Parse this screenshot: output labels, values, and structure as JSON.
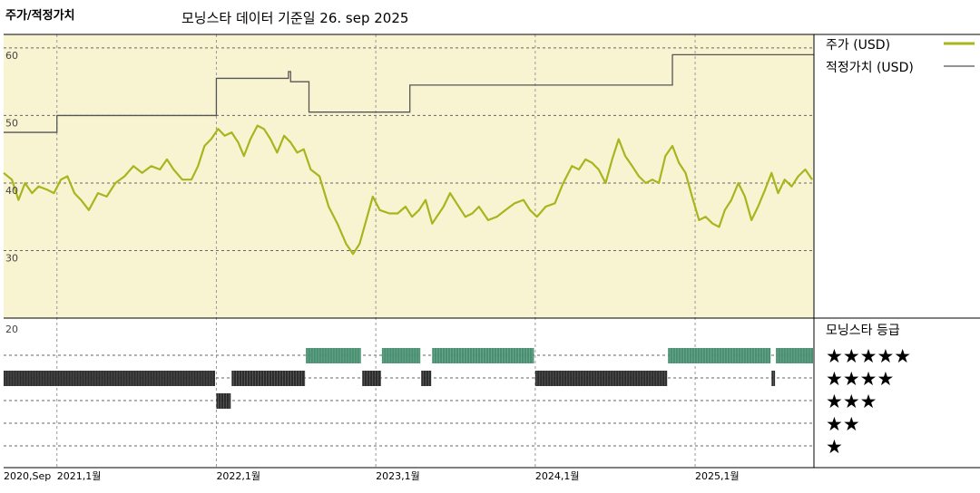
{
  "header": {
    "left_title": "주가/적정가치",
    "subtitle": "모닝스타 데이터 기준일 26. sep 2025"
  },
  "chart_data": {
    "type": "line",
    "colors": {
      "price": "#aab41e",
      "fair_value": "#555555",
      "rating_5": "#3f8a6a",
      "rating_4": "#222222",
      "rating_3": "#222222",
      "panel_bg": "#f8f4d2"
    },
    "y_ticks": [
      "60",
      "50",
      "40",
      "30"
    ],
    "ylim": [
      20,
      62
    ],
    "rating_axis_label": "20",
    "x_ticks": [
      "2020,Sep",
      "2021,1월",
      "2022,1월",
      "2023,1월",
      "2024,1월",
      "2025,1월"
    ],
    "x_tick_dates": [
      "2020-09-01",
      "2021-01-01",
      "2022-01-01",
      "2023-01-01",
      "2024-01-01",
      "2025-01-01"
    ],
    "x_range": [
      "2020-09-01",
      "2025-09-30"
    ],
    "legend": {
      "price_label": "주가 (USD)",
      "fair_label": "적정가치 (USD)",
      "rating_title": "모닝스타 등급",
      "ratings": [
        "★★★★★",
        "★★★★",
        "★★★",
        "★★",
        "★"
      ]
    },
    "series": [
      {
        "name": "주가 (USD)",
        "key": "price",
        "points": [
          [
            "2020-09-01",
            41.5
          ],
          [
            "2020-09-20",
            40.5
          ],
          [
            "2020-10-05",
            37.5
          ],
          [
            "2020-10-20",
            40.0
          ],
          [
            "2020-11-05",
            38.5
          ],
          [
            "2020-11-20",
            39.5
          ],
          [
            "2020-12-10",
            39.0
          ],
          [
            "2020-12-25",
            38.5
          ],
          [
            "2021-01-10",
            40.5
          ],
          [
            "2021-01-25",
            41.0
          ],
          [
            "2021-02-10",
            38.5
          ],
          [
            "2021-02-25",
            37.5
          ],
          [
            "2021-03-15",
            36.0
          ],
          [
            "2021-04-05",
            38.5
          ],
          [
            "2021-04-25",
            38.0
          ],
          [
            "2021-05-15",
            40.0
          ],
          [
            "2021-06-05",
            41.0
          ],
          [
            "2021-06-25",
            42.5
          ],
          [
            "2021-07-15",
            41.5
          ],
          [
            "2021-08-05",
            42.5
          ],
          [
            "2021-08-25",
            42.0
          ],
          [
            "2021-09-10",
            43.5
          ],
          [
            "2021-09-25",
            42.0
          ],
          [
            "2021-10-15",
            40.5
          ],
          [
            "2021-11-05",
            40.5
          ],
          [
            "2021-11-20",
            42.5
          ],
          [
            "2021-12-05",
            45.5
          ],
          [
            "2021-12-20",
            46.5
          ],
          [
            "2022-01-05",
            48.0
          ],
          [
            "2022-01-20",
            47.0
          ],
          [
            "2022-02-05",
            47.5
          ],
          [
            "2022-02-20",
            46.0
          ],
          [
            "2022-03-05",
            44.0
          ],
          [
            "2022-03-20",
            46.5
          ],
          [
            "2022-04-05",
            48.5
          ],
          [
            "2022-04-20",
            48.0
          ],
          [
            "2022-05-05",
            46.5
          ],
          [
            "2022-05-20",
            44.5
          ],
          [
            "2022-06-05",
            47.0
          ],
          [
            "2022-06-20",
            46.0
          ],
          [
            "2022-07-05",
            44.5
          ],
          [
            "2022-07-20",
            45.0
          ],
          [
            "2022-08-05",
            42.0
          ],
          [
            "2022-08-25",
            41.0
          ],
          [
            "2022-09-15",
            36.5
          ],
          [
            "2022-10-05",
            34.0
          ],
          [
            "2022-10-25",
            31.0
          ],
          [
            "2022-11-10",
            29.5
          ],
          [
            "2022-11-25",
            31.0
          ],
          [
            "2022-12-10",
            34.5
          ],
          [
            "2022-12-25",
            38.0
          ],
          [
            "2023-01-10",
            36.0
          ],
          [
            "2023-02-01",
            35.5
          ],
          [
            "2023-02-20",
            35.5
          ],
          [
            "2023-03-10",
            36.5
          ],
          [
            "2023-03-25",
            35.0
          ],
          [
            "2023-04-10",
            36.0
          ],
          [
            "2023-04-25",
            37.5
          ],
          [
            "2023-05-10",
            34.0
          ],
          [
            "2023-06-05",
            36.5
          ],
          [
            "2023-06-20",
            38.5
          ],
          [
            "2023-07-05",
            37.0
          ],
          [
            "2023-07-25",
            35.0
          ],
          [
            "2023-08-10",
            35.5
          ],
          [
            "2023-08-25",
            36.5
          ],
          [
            "2023-09-15",
            34.5
          ],
          [
            "2023-10-05",
            35.0
          ],
          [
            "2023-10-25",
            36.0
          ],
          [
            "2023-11-15",
            37.0
          ],
          [
            "2023-12-05",
            37.5
          ],
          [
            "2023-12-20",
            36.0
          ],
          [
            "2024-01-05",
            35.0
          ],
          [
            "2024-01-25",
            36.5
          ],
          [
            "2024-02-15",
            37.0
          ],
          [
            "2024-03-05",
            40.0
          ],
          [
            "2024-03-25",
            42.5
          ],
          [
            "2024-04-10",
            42.0
          ],
          [
            "2024-04-25",
            43.5
          ],
          [
            "2024-05-10",
            43.0
          ],
          [
            "2024-05-25",
            42.0
          ],
          [
            "2024-06-10",
            40.0
          ],
          [
            "2024-06-25",
            43.5
          ],
          [
            "2024-07-10",
            46.5
          ],
          [
            "2024-07-25",
            44.0
          ],
          [
            "2024-08-10",
            42.5
          ],
          [
            "2024-08-25",
            41.0
          ],
          [
            "2024-09-10",
            40.0
          ],
          [
            "2024-09-25",
            40.5
          ],
          [
            "2024-10-10",
            40.0
          ],
          [
            "2024-10-25",
            44.0
          ],
          [
            "2024-11-10",
            45.5
          ],
          [
            "2024-11-25",
            43.0
          ],
          [
            "2024-12-10",
            41.5
          ],
          [
            "2024-12-25",
            38.0
          ],
          [
            "2025-01-10",
            34.5
          ],
          [
            "2025-01-25",
            35.0
          ],
          [
            "2025-02-10",
            34.0
          ],
          [
            "2025-02-25",
            33.5
          ],
          [
            "2025-03-10",
            36.0
          ],
          [
            "2025-03-25",
            37.5
          ],
          [
            "2025-04-10",
            40.0
          ],
          [
            "2025-04-25",
            38.0
          ],
          [
            "2025-05-10",
            34.5
          ],
          [
            "2025-05-25",
            36.5
          ],
          [
            "2025-06-10",
            39.0
          ],
          [
            "2025-06-25",
            41.5
          ],
          [
            "2025-07-10",
            38.5
          ],
          [
            "2025-07-25",
            40.5
          ],
          [
            "2025-08-10",
            39.5
          ],
          [
            "2025-08-25",
            41.0
          ],
          [
            "2025-09-10",
            42.0
          ],
          [
            "2025-09-26",
            40.5
          ]
        ]
      },
      {
        "name": "적정가치 (USD)",
        "key": "fair_value",
        "steps": [
          [
            "2020-09-01",
            47.5
          ],
          [
            "2021-01-01",
            50.0
          ],
          [
            "2022-01-01",
            55.5
          ],
          [
            "2022-06-15",
            56.5
          ],
          [
            "2022-06-20",
            55.0
          ],
          [
            "2022-08-01",
            50.5
          ],
          [
            "2023-03-20",
            54.5
          ],
          [
            "2024-11-10",
            59.0
          ],
          [
            "2025-09-30",
            59.0
          ]
        ]
      }
    ],
    "ratings": [
      {
        "stars": 4,
        "start": "2020-09-01",
        "end": "2021-12-31"
      },
      {
        "stars": 3,
        "start": "2022-01-01",
        "end": "2022-02-05"
      },
      {
        "stars": 4,
        "start": "2022-02-05",
        "end": "2022-07-25"
      },
      {
        "stars": 5,
        "start": "2022-07-25",
        "end": "2022-11-30"
      },
      {
        "stars": 4,
        "start": "2022-12-01",
        "end": "2023-01-15"
      },
      {
        "stars": 5,
        "start": "2023-01-15",
        "end": "2023-04-15"
      },
      {
        "stars": 4,
        "start": "2023-04-15",
        "end": "2023-05-10"
      },
      {
        "stars": 5,
        "start": "2023-05-10",
        "end": "2023-12-31"
      },
      {
        "stars": 4,
        "start": "2024-01-01",
        "end": "2024-10-31"
      },
      {
        "stars": 5,
        "start": "2024-10-31",
        "end": "2025-06-25"
      },
      {
        "stars": 4,
        "start": "2025-06-25",
        "end": "2025-07-05"
      },
      {
        "stars": 5,
        "start": "2025-07-05",
        "end": "2025-09-30"
      }
    ]
  }
}
